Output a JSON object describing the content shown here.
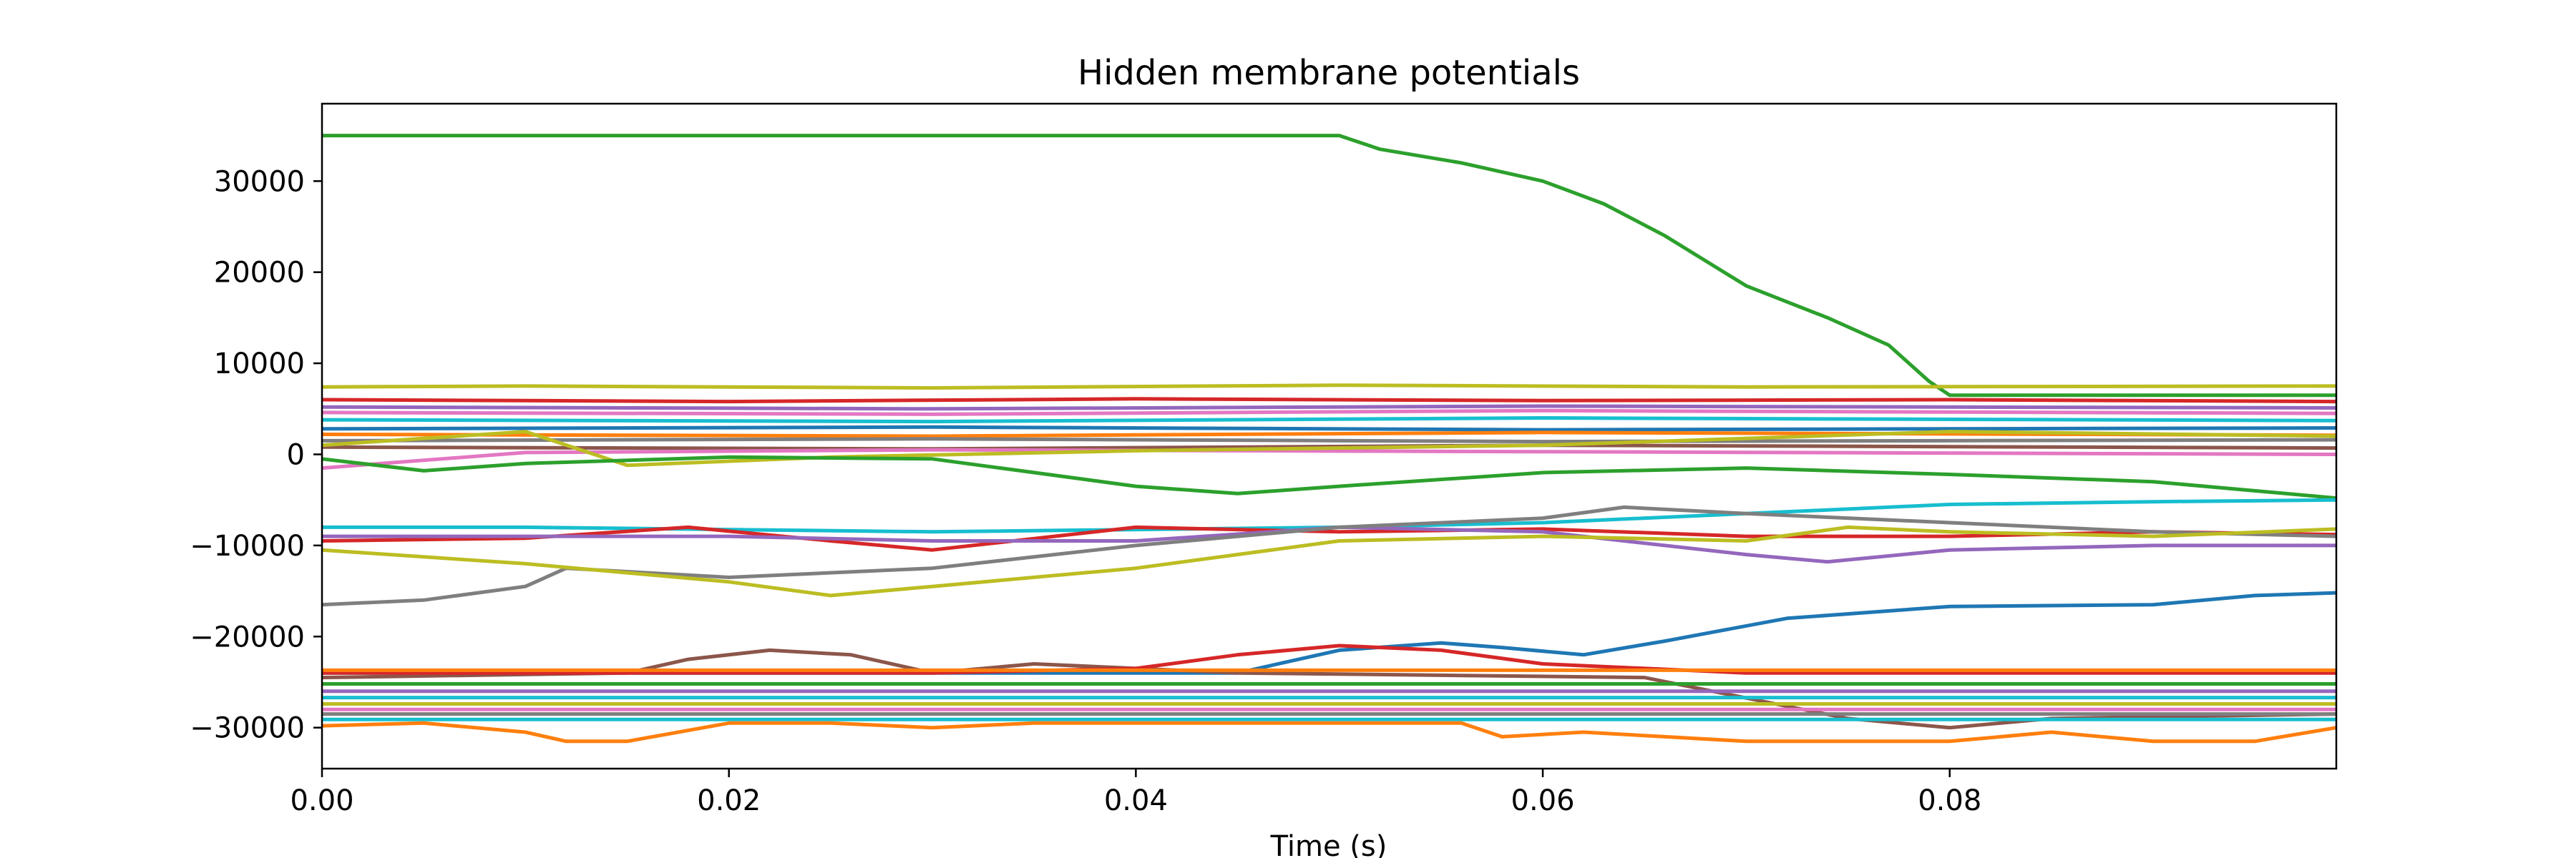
{
  "chart_data": {
    "type": "line",
    "title": "Hidden membrane potentials",
    "xlabel": "Time (s)",
    "ylabel": "",
    "xlim": [
      0,
      0.099
    ],
    "ylim": [
      -34500,
      38500
    ],
    "xticks": [
      0.0,
      0.02,
      0.04,
      0.06,
      0.08
    ],
    "xtick_labels": [
      "0.00",
      "0.02",
      "0.04",
      "0.06",
      "0.08"
    ],
    "yticks": [
      -30000,
      -20000,
      -10000,
      0,
      10000,
      20000,
      30000
    ],
    "ytick_labels": [
      "−30000",
      "−20000",
      "−10000",
      "0",
      "10000",
      "20000",
      "30000"
    ],
    "grid": false,
    "legend": "none",
    "palette": [
      "#1f77b4",
      "#ff7f0e",
      "#2ca02c",
      "#d62728",
      "#9467bd",
      "#8c564b",
      "#e377c2",
      "#7f7f7f",
      "#bcbd22",
      "#17becf"
    ],
    "series": [
      {
        "color": "#2ca02c",
        "points": [
          [
            0,
            35000
          ],
          [
            0.05,
            35000
          ],
          [
            0.052,
            33500
          ],
          [
            0.056,
            32000
          ],
          [
            0.06,
            30000
          ],
          [
            0.063,
            27500
          ],
          [
            0.066,
            24000
          ],
          [
            0.07,
            18500
          ],
          [
            0.074,
            15000
          ],
          [
            0.077,
            12000
          ],
          [
            0.079,
            8000
          ],
          [
            0.08,
            6500
          ],
          [
            0.099,
            6500
          ]
        ]
      },
      {
        "color": "#bcbd22",
        "points": [
          [
            0,
            7400
          ],
          [
            0.01,
            7500
          ],
          [
            0.03,
            7300
          ],
          [
            0.05,
            7600
          ],
          [
            0.07,
            7400
          ],
          [
            0.099,
            7500
          ]
        ]
      },
      {
        "color": "#d62728",
        "points": [
          [
            0,
            6000
          ],
          [
            0.02,
            5800
          ],
          [
            0.04,
            6100
          ],
          [
            0.06,
            5900
          ],
          [
            0.08,
            6000
          ],
          [
            0.099,
            5800
          ]
        ]
      },
      {
        "color": "#9467bd",
        "points": [
          [
            0,
            5200
          ],
          [
            0.03,
            5000
          ],
          [
            0.06,
            5300
          ],
          [
            0.099,
            5100
          ]
        ]
      },
      {
        "color": "#e377c2",
        "points": [
          [
            0,
            4600
          ],
          [
            0.03,
            4400
          ],
          [
            0.06,
            4800
          ],
          [
            0.099,
            4500
          ]
        ]
      },
      {
        "color": "#17becf",
        "points": [
          [
            0,
            3800
          ],
          [
            0.03,
            3600
          ],
          [
            0.06,
            4000
          ],
          [
            0.099,
            3700
          ]
        ]
      },
      {
        "color": "#1f77b4",
        "points": [
          [
            0,
            2800
          ],
          [
            0.03,
            3000
          ],
          [
            0.06,
            2700
          ],
          [
            0.099,
            2900
          ]
        ]
      },
      {
        "color": "#ff7f0e",
        "points": [
          [
            0,
            2200
          ],
          [
            0.03,
            2000
          ],
          [
            0.06,
            2400
          ],
          [
            0.099,
            2100
          ]
        ]
      },
      {
        "color": "#7f7f7f",
        "points": [
          [
            0,
            1500
          ],
          [
            0.03,
            1700
          ],
          [
            0.06,
            1400
          ],
          [
            0.099,
            1600
          ]
        ]
      },
      {
        "color": "#8c564b",
        "points": [
          [
            0,
            800
          ],
          [
            0.03,
            600
          ],
          [
            0.06,
            1000
          ],
          [
            0.099,
            700
          ]
        ]
      },
      {
        "color": "#e377c2",
        "points": [
          [
            0,
            -1500
          ],
          [
            0.01,
            200
          ],
          [
            0.03,
            500
          ],
          [
            0.06,
            300
          ],
          [
            0.099,
            0
          ]
        ]
      },
      {
        "color": "#bcbd22",
        "points": [
          [
            0,
            1000
          ],
          [
            0.01,
            2500
          ],
          [
            0.015,
            -1200
          ],
          [
            0.025,
            -300
          ],
          [
            0.04,
            400
          ],
          [
            0.06,
            1000
          ],
          [
            0.08,
            2500
          ],
          [
            0.099,
            2000
          ]
        ]
      },
      {
        "color": "#2ca02c",
        "points": [
          [
            0,
            -500
          ],
          [
            0.005,
            -1800
          ],
          [
            0.01,
            -1000
          ],
          [
            0.02,
            -300
          ],
          [
            0.03,
            -500
          ],
          [
            0.04,
            -3500
          ],
          [
            0.045,
            -4300
          ],
          [
            0.05,
            -3500
          ],
          [
            0.06,
            -2000
          ],
          [
            0.07,
            -1500
          ],
          [
            0.08,
            -2200
          ],
          [
            0.09,
            -3000
          ],
          [
            0.099,
            -4800
          ]
        ]
      },
      {
        "color": "#17becf",
        "points": [
          [
            0,
            -8000
          ],
          [
            0.01,
            -8000
          ],
          [
            0.03,
            -8500
          ],
          [
            0.05,
            -8000
          ],
          [
            0.06,
            -7500
          ],
          [
            0.07,
            -6500
          ],
          [
            0.08,
            -5500
          ],
          [
            0.09,
            -5200
          ],
          [
            0.099,
            -5000
          ]
        ]
      },
      {
        "color": "#d62728",
        "points": [
          [
            0,
            -9500
          ],
          [
            0.01,
            -9200
          ],
          [
            0.018,
            -8000
          ],
          [
            0.025,
            -9500
          ],
          [
            0.03,
            -10500
          ],
          [
            0.04,
            -8000
          ],
          [
            0.05,
            -8500
          ],
          [
            0.06,
            -8200
          ],
          [
            0.07,
            -9000
          ],
          [
            0.08,
            -9000
          ],
          [
            0.09,
            -8500
          ],
          [
            0.099,
            -8800
          ]
        ]
      },
      {
        "color": "#9467bd",
        "points": [
          [
            0,
            -9000
          ],
          [
            0.01,
            -9000
          ],
          [
            0.02,
            -9000
          ],
          [
            0.03,
            -9500
          ],
          [
            0.04,
            -9500
          ],
          [
            0.05,
            -8000
          ],
          [
            0.06,
            -8500
          ],
          [
            0.07,
            -11000
          ],
          [
            0.074,
            -11800
          ],
          [
            0.08,
            -10500
          ],
          [
            0.09,
            -10000
          ],
          [
            0.099,
            -10000
          ]
        ]
      },
      {
        "color": "#7f7f7f",
        "points": [
          [
            0,
            -16500
          ],
          [
            0.005,
            -16000
          ],
          [
            0.01,
            -14500
          ],
          [
            0.012,
            -12500
          ],
          [
            0.02,
            -13500
          ],
          [
            0.03,
            -12500
          ],
          [
            0.04,
            -10000
          ],
          [
            0.05,
            -8000
          ],
          [
            0.06,
            -7000
          ],
          [
            0.064,
            -5800
          ],
          [
            0.07,
            -6500
          ],
          [
            0.08,
            -7500
          ],
          [
            0.09,
            -8500
          ],
          [
            0.099,
            -9000
          ]
        ]
      },
      {
        "color": "#bcbd22",
        "points": [
          [
            0,
            -10500
          ],
          [
            0.01,
            -12000
          ],
          [
            0.02,
            -14000
          ],
          [
            0.025,
            -15500
          ],
          [
            0.03,
            -14500
          ],
          [
            0.04,
            -12500
          ],
          [
            0.05,
            -9500
          ],
          [
            0.06,
            -9000
          ],
          [
            0.07,
            -9500
          ],
          [
            0.075,
            -8000
          ],
          [
            0.08,
            -8500
          ],
          [
            0.09,
            -9000
          ],
          [
            0.099,
            -8200
          ]
        ]
      },
      {
        "color": "#1f77b4",
        "points": [
          [
            0,
            -24000
          ],
          [
            0.045,
            -24000
          ],
          [
            0.05,
            -21500
          ],
          [
            0.055,
            -20700
          ],
          [
            0.058,
            -21200
          ],
          [
            0.062,
            -22000
          ],
          [
            0.066,
            -20500
          ],
          [
            0.072,
            -18000
          ],
          [
            0.08,
            -16700
          ],
          [
            0.09,
            -16500
          ],
          [
            0.095,
            -15500
          ],
          [
            0.099,
            -15200
          ]
        ]
      },
      {
        "color": "#8c564b",
        "points": [
          [
            0,
            -24500
          ],
          [
            0.015,
            -24000
          ],
          [
            0.018,
            -22500
          ],
          [
            0.022,
            -21500
          ],
          [
            0.026,
            -22000
          ],
          [
            0.03,
            -24000
          ],
          [
            0.035,
            -23000
          ],
          [
            0.045,
            -24000
          ],
          [
            0.065,
            -24500
          ],
          [
            0.075,
            -29000
          ],
          [
            0.08,
            -30000
          ],
          [
            0.085,
            -29000
          ],
          [
            0.099,
            -28500
          ]
        ]
      },
      {
        "color": "#d62728",
        "points": [
          [
            0,
            -24000
          ],
          [
            0.03,
            -24000
          ],
          [
            0.04,
            -23500
          ],
          [
            0.045,
            -22000
          ],
          [
            0.05,
            -21000
          ],
          [
            0.055,
            -21500
          ],
          [
            0.06,
            -23000
          ],
          [
            0.07,
            -24000
          ],
          [
            0.099,
            -24000
          ]
        ]
      },
      {
        "color": "#ff7f0e",
        "points": [
          [
            0,
            -23700
          ],
          [
            0.099,
            -23700
          ]
        ]
      },
      {
        "color": "#2ca02c",
        "points": [
          [
            0,
            -25200
          ],
          [
            0.099,
            -25200
          ]
        ]
      },
      {
        "color": "#9467bd",
        "points": [
          [
            0,
            -26000
          ],
          [
            0.099,
            -26000
          ]
        ]
      },
      {
        "color": "#17becf",
        "points": [
          [
            0,
            -26700
          ],
          [
            0.099,
            -26700
          ]
        ]
      },
      {
        "color": "#bcbd22",
        "points": [
          [
            0,
            -27400
          ],
          [
            0.099,
            -27400
          ]
        ]
      },
      {
        "color": "#e377c2",
        "points": [
          [
            0,
            -28000
          ],
          [
            0.099,
            -28000
          ]
        ]
      },
      {
        "color": "#7f7f7f",
        "points": [
          [
            0,
            -28500
          ],
          [
            0.099,
            -28500
          ]
        ]
      },
      {
        "color": "#17becf",
        "points": [
          [
            0,
            -29100
          ],
          [
            0.099,
            -29100
          ]
        ]
      },
      {
        "color": "#ff7f0e",
        "points": [
          [
            0,
            -29800
          ],
          [
            0.005,
            -29500
          ],
          [
            0.01,
            -30500
          ],
          [
            0.012,
            -31500
          ],
          [
            0.015,
            -31500
          ],
          [
            0.02,
            -29500
          ],
          [
            0.025,
            -29500
          ],
          [
            0.03,
            -30000
          ],
          [
            0.035,
            -29500
          ],
          [
            0.056,
            -29500
          ],
          [
            0.058,
            -31000
          ],
          [
            0.062,
            -30500
          ],
          [
            0.066,
            -31000
          ],
          [
            0.07,
            -31500
          ],
          [
            0.08,
            -31500
          ],
          [
            0.085,
            -30500
          ],
          [
            0.09,
            -31500
          ],
          [
            0.095,
            -31500
          ],
          [
            0.099,
            -30000
          ]
        ]
      }
    ]
  }
}
